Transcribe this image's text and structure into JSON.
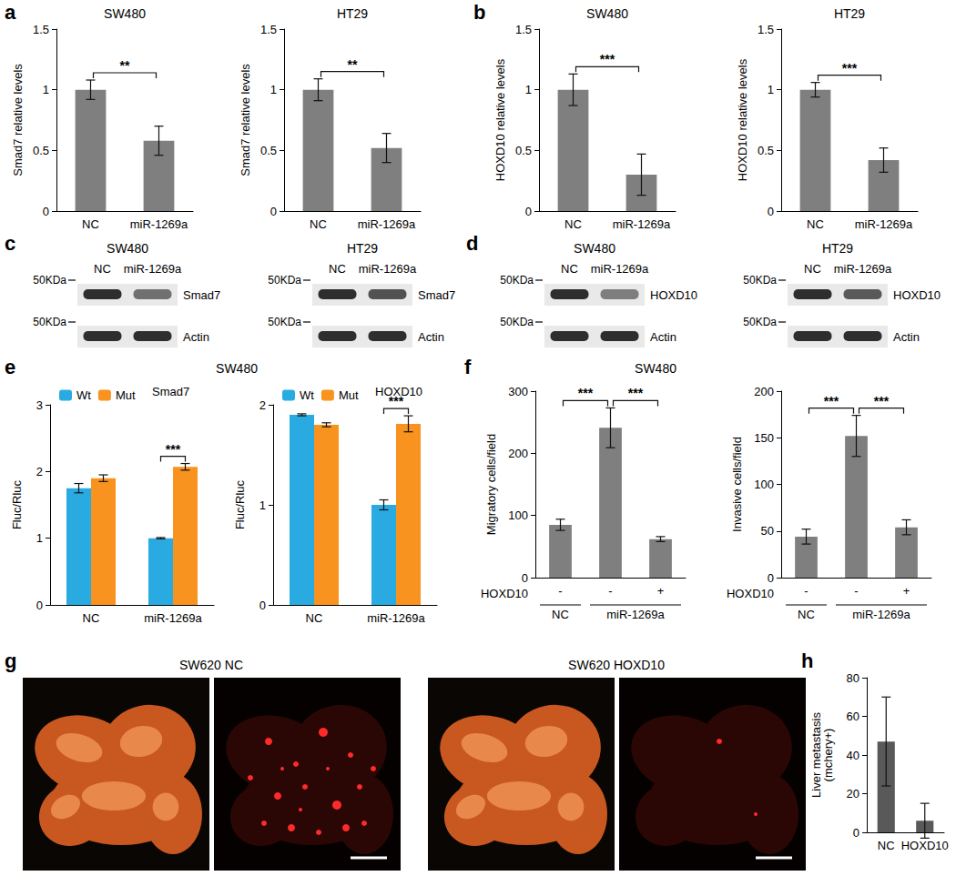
{
  "chart_data": [
    {
      "panel": "a",
      "type": "bar",
      "title": "SW480",
      "y_label": "Smad7 relative levels",
      "categories": [
        "NC",
        "miR-1269a"
      ],
      "values": [
        1.0,
        0.58
      ],
      "errors": [
        0.08,
        0.12
      ],
      "color": "#7f7f7f",
      "ylim": [
        0,
        1.5
      ],
      "yticks": [
        0,
        0.5,
        1,
        1.5
      ],
      "grid": false,
      "annotations": [
        {
          "text": "**",
          "from": 0,
          "to": 1
        }
      ]
    },
    {
      "type": "bar",
      "title": "HT29",
      "y_label": "Smad7 relative levels",
      "categories": [
        "NC",
        "miR-1269a"
      ],
      "values": [
        1.0,
        0.52
      ],
      "errors": [
        0.09,
        0.12
      ],
      "color": "#7f7f7f",
      "ylim": [
        0,
        1.5
      ],
      "yticks": [
        0,
        0.5,
        1,
        1.5
      ],
      "grid": false,
      "annotations": [
        {
          "text": "**",
          "from": 0,
          "to": 1
        }
      ]
    },
    {
      "panel": "b",
      "type": "bar",
      "title": "SW480",
      "y_label": "HOXD10 relative levels",
      "categories": [
        "NC",
        "miR-1269a"
      ],
      "values": [
        1.0,
        0.3
      ],
      "errors": [
        0.13,
        0.17
      ],
      "color": "#7f7f7f",
      "ylim": [
        0,
        1.5
      ],
      "yticks": [
        0,
        0.5,
        1,
        1.5
      ],
      "grid": false,
      "annotations": [
        {
          "text": "***",
          "from": 0,
          "to": 1
        }
      ]
    },
    {
      "type": "bar",
      "title": "HT29",
      "y_label": "HOXD10 relative levels",
      "categories": [
        "NC",
        "miR-1269a"
      ],
      "values": [
        1.0,
        0.42
      ],
      "errors": [
        0.06,
        0.1
      ],
      "color": "#7f7f7f",
      "ylim": [
        0,
        1.5
      ],
      "yticks": [
        0,
        0.5,
        1,
        1.5
      ],
      "grid": false,
      "annotations": [
        {
          "text": "***",
          "from": 0,
          "to": 1
        }
      ]
    },
    {
      "panel": "e",
      "type": "bar",
      "title": "SW480",
      "subtitle": "Smad7",
      "y_label": "Fluc/Rluc",
      "categories": [
        "NC",
        "miR-1269a"
      ],
      "series": [
        {
          "name": "Wt",
          "color": "#29abe2",
          "values": [
            1.75,
            1.0
          ],
          "errors": [
            0.07,
            0.01
          ]
        },
        {
          "name": "Mut",
          "color": "#f7931e",
          "values": [
            1.9,
            2.07
          ],
          "errors": [
            0.05,
            0.05
          ]
        }
      ],
      "legend": "top-left",
      "ylim": [
        0,
        3
      ],
      "yticks": [
        0,
        1,
        2,
        3
      ],
      "grid": false,
      "annotations": [
        {
          "text": "***",
          "category": 1,
          "series": [
            0,
            1
          ]
        }
      ]
    },
    {
      "type": "bar",
      "subtitle": "HOXD10",
      "y_label": "Fluc/Rluc",
      "categories": [
        "NC",
        "miR-1269a"
      ],
      "series": [
        {
          "name": "Wt",
          "color": "#29abe2",
          "values": [
            1.9,
            1.0
          ],
          "errors": [
            0.01,
            0.05
          ]
        },
        {
          "name": "Mut",
          "color": "#f7931e",
          "values": [
            1.8,
            1.81
          ],
          "errors": [
            0.02,
            0.08
          ]
        }
      ],
      "legend": "top-left",
      "ylim": [
        0,
        2
      ],
      "yticks": [
        0,
        1,
        2
      ],
      "grid": false,
      "annotations": [
        {
          "text": "***",
          "category": 1,
          "series": [
            0,
            1
          ]
        }
      ]
    },
    {
      "panel": "f",
      "type": "bar",
      "title": "SW480",
      "y_label": "Migratory cells/field",
      "categories": [
        "-",
        "-",
        "+"
      ],
      "x_label": "HOXD10",
      "groups": [
        {
          "label": "NC",
          "from": 0,
          "to": 0
        },
        {
          "label": "miR-1269a",
          "from": 1,
          "to": 2
        }
      ],
      "values": [
        85,
        241,
        62
      ],
      "errors": [
        9,
        32,
        4
      ],
      "color": "#7f7f7f",
      "ylim": [
        0,
        300
      ],
      "yticks": [
        0,
        100,
        200,
        300
      ],
      "grid": false,
      "annotations": [
        {
          "text": "***",
          "from": 0,
          "to": 1
        },
        {
          "text": "***",
          "from": 1,
          "to": 2
        }
      ]
    },
    {
      "type": "bar",
      "y_label": "Invasive cells/field",
      "categories": [
        "-",
        "-",
        "+"
      ],
      "x_label": "HOXD10",
      "groups": [
        {
          "label": "NC",
          "from": 0,
          "to": 0
        },
        {
          "label": "miR-1269a",
          "from": 1,
          "to": 2
        }
      ],
      "values": [
        44,
        152,
        54
      ],
      "errors": [
        8,
        22,
        8
      ],
      "color": "#7f7f7f",
      "ylim": [
        0,
        200
      ],
      "yticks": [
        0,
        50,
        100,
        150,
        200
      ],
      "grid": false,
      "annotations": [
        {
          "text": "***",
          "from": 0,
          "to": 1
        },
        {
          "text": "***",
          "from": 1,
          "to": 2
        }
      ]
    },
    {
      "panel": "h",
      "type": "bar",
      "y_label": "Liver metastasis\n(mchery+)",
      "categories": [
        "NC",
        "HOXD10"
      ],
      "values": [
        47,
        6
      ],
      "errors": [
        23,
        9
      ],
      "color": "#595959",
      "ylim": [
        0,
        80
      ],
      "yticks": [
        0,
        20,
        40,
        60,
        80
      ],
      "grid": false,
      "annotations": []
    }
  ],
  "blots": [
    {
      "panel": "c",
      "title": "SW480",
      "lanes": [
        "NC",
        "miR-1269a"
      ],
      "marker": "50KDa",
      "rows": [
        {
          "label": "Smad7",
          "intensity": [
            1,
            0.55
          ]
        },
        {
          "label": "Actin",
          "intensity": [
            1,
            1
          ]
        }
      ]
    },
    {
      "title": "HT29",
      "lanes": [
        "NC",
        "miR-1269a"
      ],
      "marker": "50KDa",
      "rows": [
        {
          "label": "Smad7",
          "intensity": [
            1,
            0.75
          ]
        },
        {
          "label": "Actin",
          "intensity": [
            1,
            1
          ]
        }
      ]
    },
    {
      "panel": "d",
      "title": "SW480",
      "lanes": [
        "NC",
        "miR-1269a"
      ],
      "marker": "50KDa",
      "rows": [
        {
          "label": "HOXD10",
          "intensity": [
            1,
            0.45
          ]
        },
        {
          "label": "Actin",
          "intensity": [
            1,
            1
          ]
        }
      ]
    },
    {
      "title": "HT29",
      "lanes": [
        "NC",
        "miR-1269a"
      ],
      "marker": "50KDa",
      "rows": [
        {
          "label": "HOXD10",
          "intensity": [
            1,
            0.7
          ]
        },
        {
          "label": "Actin",
          "intensity": [
            1,
            1
          ]
        }
      ]
    }
  ],
  "images": {
    "panel": "g",
    "items": [
      {
        "title": "SW620 NC"
      },
      {
        "title": "SW620 HOXD10"
      }
    ]
  }
}
